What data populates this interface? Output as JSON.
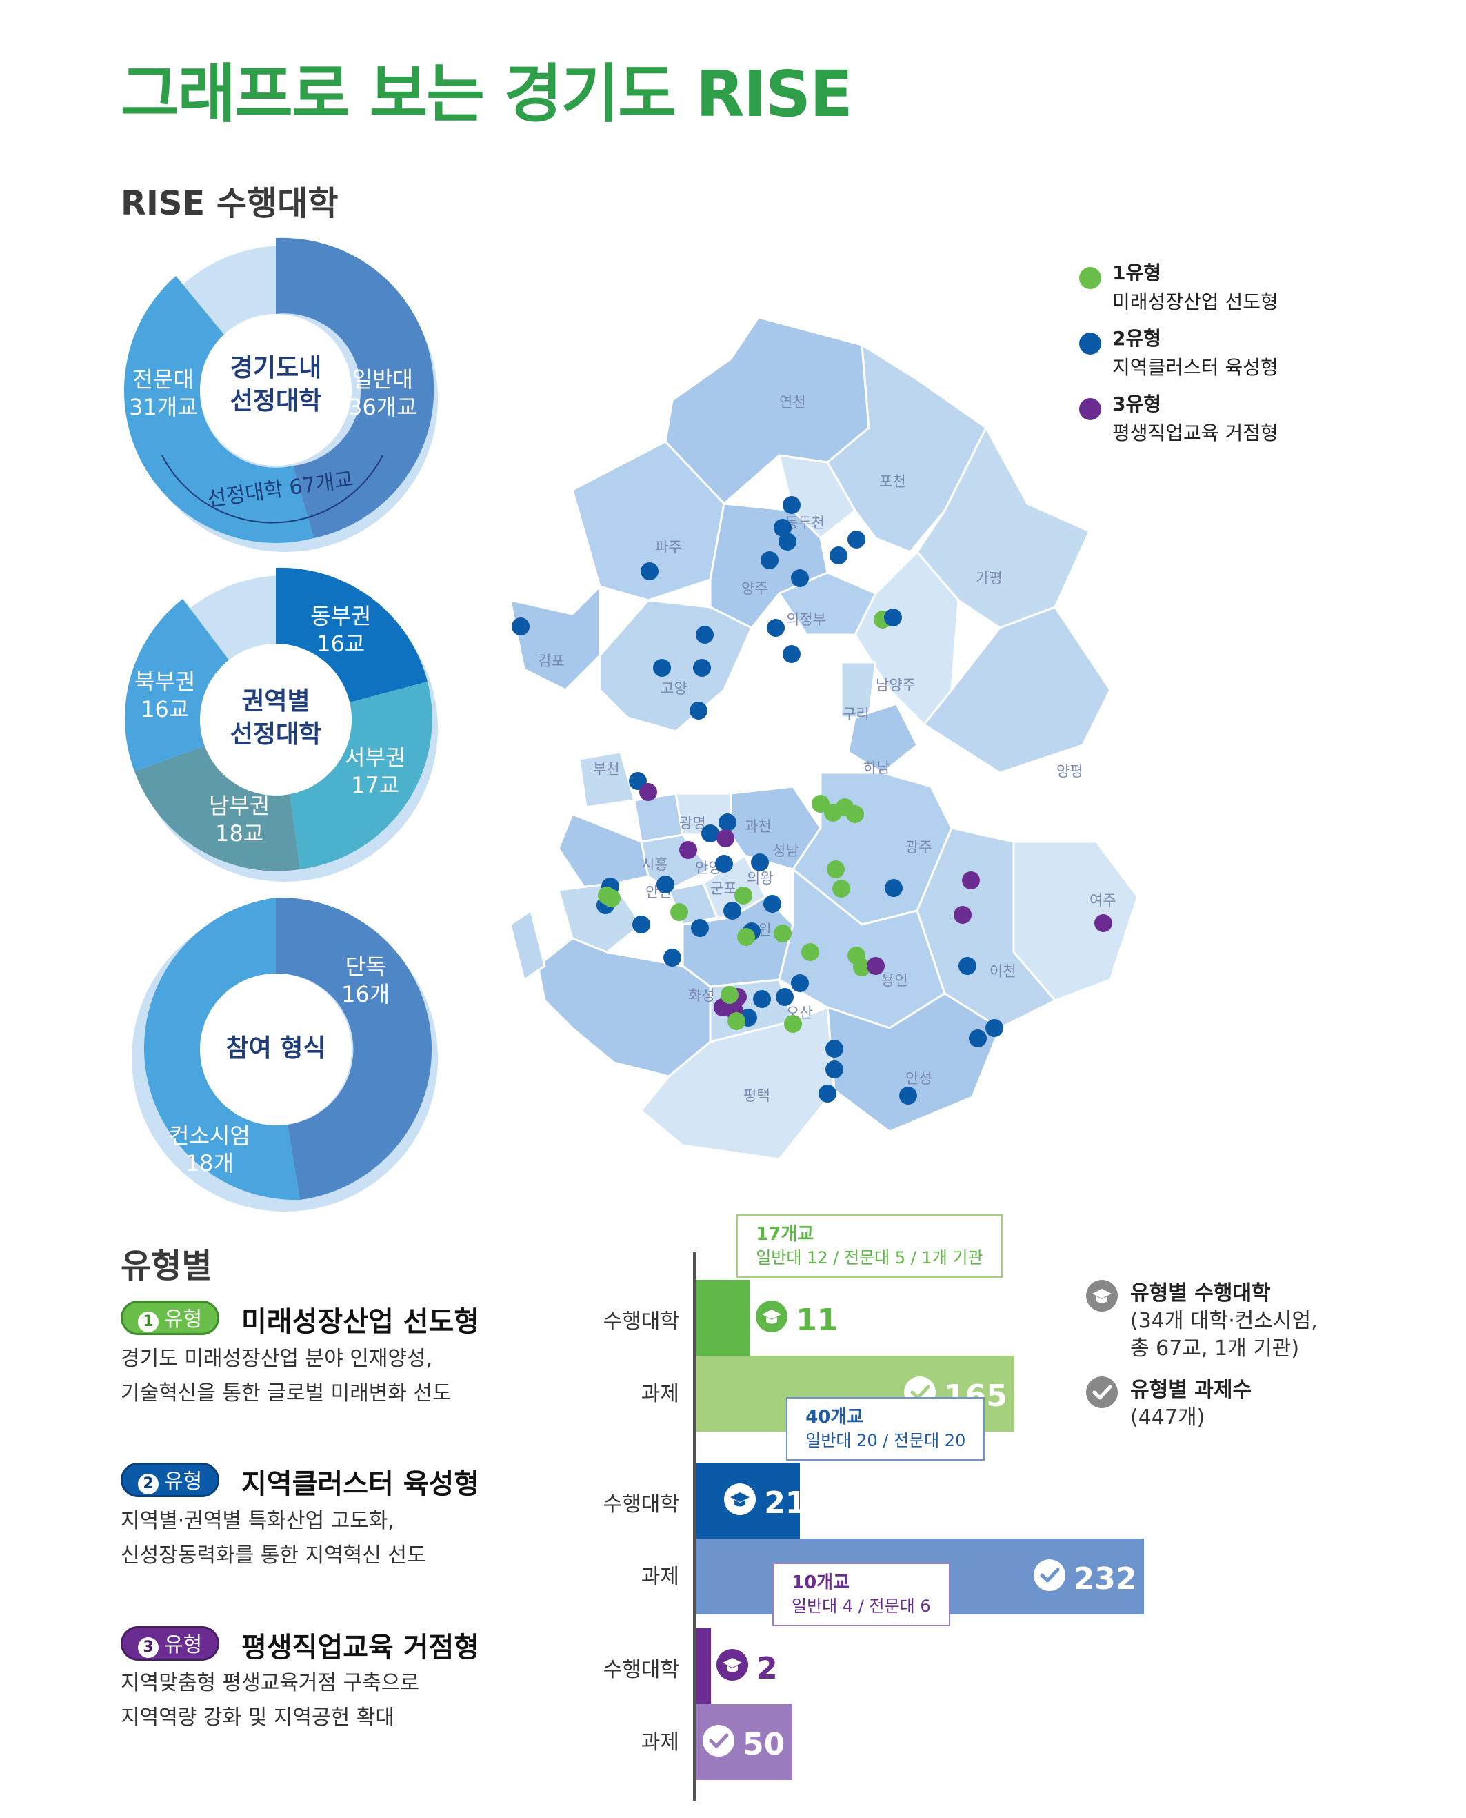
{
  "title": "그래프로 보는 경기도 RISE",
  "section_universities": {
    "heading": "RISE 수행대학",
    "donut1": {
      "center": [
        "경기도내",
        "선정대학"
      ],
      "segments": [
        {
          "label": [
            "일반대",
            "36개교"
          ],
          "value": 36,
          "color": "#4f86c6"
        },
        {
          "label": [
            "전문대",
            "31개교"
          ],
          "value": 31,
          "color": "#4aa5df"
        }
      ],
      "arc_label": "선정대학 67개교"
    },
    "donut2": {
      "center": [
        "권역별",
        "선정대학"
      ],
      "segments": [
        {
          "label": [
            "동부권",
            "16교"
          ],
          "value": 16,
          "color": "#0f72c0"
        },
        {
          "label": [
            "서부권",
            "17교"
          ],
          "value": 17,
          "color": "#4bb1cd"
        },
        {
          "label": [
            "남부권",
            "18교"
          ],
          "value": 18,
          "color": "#5e9aa8"
        },
        {
          "label": [
            "북부권",
            "16교"
          ],
          "value": 16,
          "color": "#4aa5df"
        }
      ]
    },
    "donut3": {
      "center": [
        "참여 형식"
      ],
      "segments": [
        {
          "label": [
            "단독",
            "16개"
          ],
          "value": 16,
          "color": "#4f86c6"
        },
        {
          "label": [
            "컨소시엄",
            "18개"
          ],
          "value": 18,
          "color": "#4aa5df"
        }
      ]
    }
  },
  "map": {
    "legend": [
      {
        "name": "1유형",
        "desc": "미래성장산업 선도형",
        "color": "#6abf4b"
      },
      {
        "name": "2유형",
        "desc": "지역클러스터 육성형",
        "color": "#0a5aa8"
      },
      {
        "name": "3유형",
        "desc": "평생직업교육 거점형",
        "color": "#6a2c91"
      }
    ],
    "regions": [
      "연천",
      "포천",
      "동두천",
      "파주",
      "양주",
      "가평",
      "의정부",
      "김포",
      "고양",
      "남양주",
      "구리",
      "하남",
      "양평",
      "부천",
      "광명",
      "과천",
      "시흥",
      "안양",
      "성남",
      "광주",
      "안산",
      "군포",
      "의왕",
      "여주",
      "수원",
      "이천",
      "화성",
      "용인",
      "오산",
      "안성",
      "평택"
    ]
  },
  "section_types": {
    "heading": "유형별",
    "types": [
      {
        "num": "1",
        "badge": "유형",
        "title": "미래성장산업 선도형",
        "desc": [
          "경기도 미래성장산업 분야 인재양성,",
          "기술혁신을 통한 글로벌 미래변화 선도"
        ],
        "color": "#6abf4b"
      },
      {
        "num": "2",
        "badge": "유형",
        "title": "지역클러스터 육성형",
        "desc": [
          "지역별·권역별 특화산업 고도화,",
          "신성장동력화를 통한 지역혁신 선도"
        ],
        "color": "#0a5aa8"
      },
      {
        "num": "3",
        "badge": "유형",
        "title": "평생직업교육 거점형",
        "desc": [
          "지역맞춤형 평생교육거점 구축으로",
          "지역역량 강화 및 지역공헌 확대"
        ],
        "color": "#6a2c91"
      }
    ]
  },
  "chart_data": {
    "type": "bar",
    "orientation": "horizontal",
    "categories": [
      "1유형",
      "2유형",
      "3유형"
    ],
    "row_labels": {
      "univ": "수행대학",
      "task": "과제"
    },
    "series": [
      {
        "name": "유형별 수행대학",
        "values": [
          11,
          21,
          2
        ]
      },
      {
        "name": "유형별 과제수",
        "values": [
          165,
          232,
          50
        ]
      }
    ],
    "callouts": [
      {
        "head": "17개교",
        "detail": "일반대 12 / 전문대 5 / 1개 기관"
      },
      {
        "head": "40개교",
        "detail": "일반대 20 / 전문대 20"
      },
      {
        "head": "10개교",
        "detail": "일반대 4 / 전문대 6"
      }
    ],
    "legend": [
      {
        "name": "유형별 수행대학",
        "note": [
          "(34개 대학·컨소시엄,",
          "총 67교, 1개 기관)"
        ]
      },
      {
        "name": "유형별 과제수",
        "note": [
          "(447개)"
        ]
      }
    ],
    "colors": {
      "univ": [
        "#5fb747",
        "#0a5aa8",
        "#6a2c91"
      ],
      "task": [
        "#a5d17f",
        "#6d94cc",
        "#9b7cbf"
      ],
      "callout_border": [
        "#a5d17f",
        "#6d94cc",
        "#9b7cbf"
      ],
      "callout_text": [
        "#5fb747",
        "#1f5aa8",
        "#6a2c91"
      ]
    }
  }
}
